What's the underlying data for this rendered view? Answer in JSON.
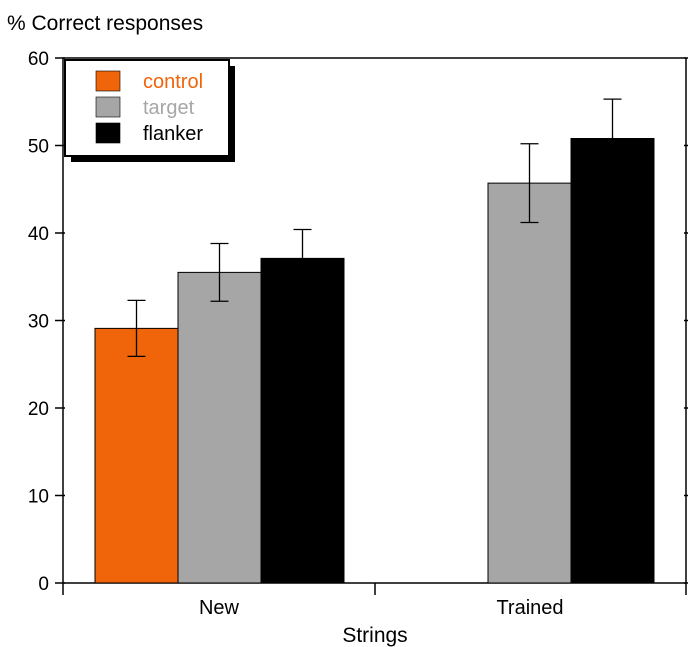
{
  "chart_data": {
    "type": "bar",
    "ylabel": "% Correct responses",
    "xlabel": "Strings",
    "ylim": [
      0,
      60
    ],
    "yticks": [
      0,
      10,
      20,
      30,
      40,
      50,
      60
    ],
    "categories": [
      "New",
      "Trained"
    ],
    "series": [
      {
        "name": "control",
        "color": "#f0640a",
        "values": [
          29.1,
          null
        ],
        "errors": [
          3.2,
          null
        ]
      },
      {
        "name": "target",
        "color": "#a6a6a6",
        "values": [
          35.5,
          45.7
        ],
        "errors": [
          3.3,
          4.5
        ]
      },
      {
        "name": "flanker",
        "color": "#000000",
        "values": [
          37.1,
          50.8
        ],
        "errors": [
          3.3,
          4.5
        ]
      }
    ],
    "legend": {
      "position": "top-left",
      "framed": true,
      "drop_shadow": true
    }
  }
}
